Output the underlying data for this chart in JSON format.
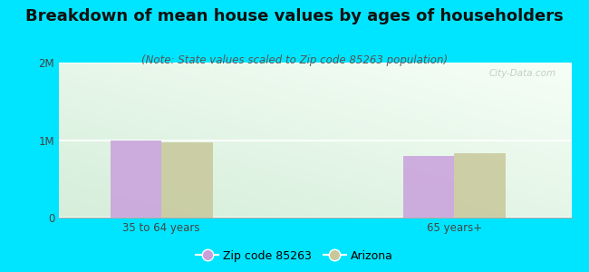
{
  "title": "Breakdown of mean house values by ages of householders",
  "subtitle": "(Note: State values scaled to Zip code 85263 population)",
  "categories": [
    "35 to 64 years",
    "65 years+"
  ],
  "zip_values": [
    1000000,
    800000
  ],
  "az_values": [
    970000,
    830000
  ],
  "ylim": [
    0,
    2000000
  ],
  "yticks": [
    0,
    1000000,
    2000000
  ],
  "ytick_labels": [
    "0",
    "1M",
    "2M"
  ],
  "zip_color": "#c9a0dc",
  "az_color": "#c8c89a",
  "background_outer": "#00e5ff",
  "title_fontsize": 13,
  "subtitle_fontsize": 8.5,
  "legend_labels": [
    "Zip code 85263",
    "Arizona"
  ],
  "watermark": "City-Data.com",
  "bar_width": 0.35,
  "group_positions": [
    1.0,
    3.0
  ]
}
